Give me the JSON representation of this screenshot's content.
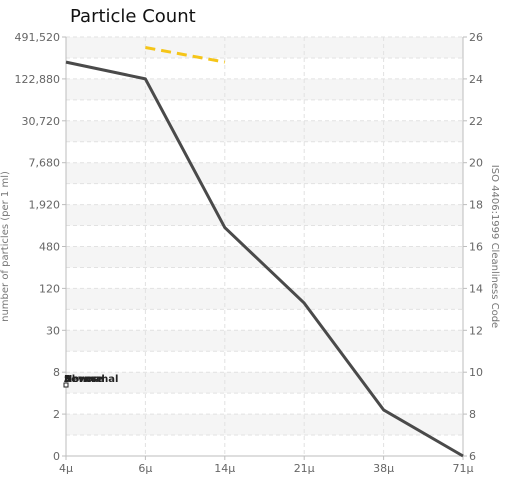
{
  "chart_data": {
    "type": "line",
    "title": "Particle Count",
    "ylabel_left": "number of particles (per 1 ml)",
    "ylabel_right": "ISO 4406:1999 Cleanliness Code",
    "categories": [
      "4μ",
      "6μ",
      "14μ",
      "21μ",
      "38μ",
      "71μ"
    ],
    "left_ticks": [
      "0",
      "2",
      "8",
      "30",
      "120",
      "480",
      "1,920",
      "7,680",
      "30,720",
      "122,880",
      "491,520"
    ],
    "right_ticks": [
      "6",
      "8",
      "10",
      "12",
      "14",
      "16",
      "18",
      "20",
      "22",
      "24",
      "26"
    ],
    "grid": true,
    "series": [
      {
        "values": [
          24.8,
          24.0,
          16.9,
          13.3,
          8.2,
          6.0
        ],
        "color": "#4a4a4a"
      },
      {
        "x": [
          6,
          14
        ],
        "values": [
          25.5,
          24.8
        ],
        "color": "#f5c518",
        "style": "dashed"
      }
    ],
    "annotations": [
      "Severe",
      "Abnormal",
      "Normal"
    ]
  }
}
